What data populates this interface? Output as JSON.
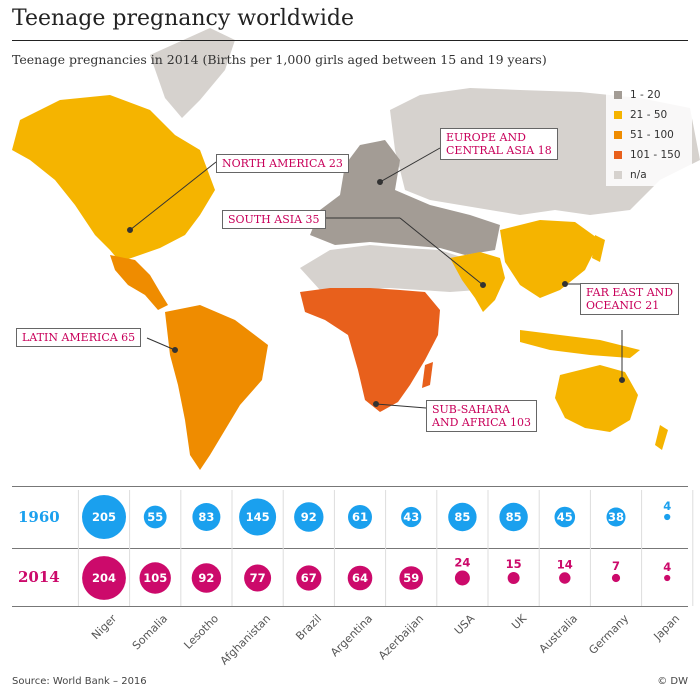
{
  "title": "Teenage pregnancy worldwide",
  "subtitle": "Teenage pregnancies in 2014 (Births per 1,000 girls aged between 15 and 19 years)",
  "colors": {
    "band_1_20": "#a39c95",
    "band_21_50": "#f5b400",
    "band_51_100": "#ef8c00",
    "band_101_150": "#e8601c",
    "band_na": "#d6d2ce",
    "blue": "#1aa0ee",
    "pink": "#cc0a6b"
  },
  "legend": [
    {
      "label": "1 - 20",
      "color": "#a39c95"
    },
    {
      "label": "21 - 50",
      "color": "#f5b400"
    },
    {
      "label": "51 - 100",
      "color": "#ef8c00"
    },
    {
      "label": "101 - 150",
      "color": "#e8601c"
    },
    {
      "label": "n/a",
      "color": "#d6d2ce"
    }
  ],
  "regions": {
    "north_america": "NORTH AMERICA 23",
    "europe_central_asia": "EUROPE AND\nCENTRAL ASIA 18",
    "south_asia": "SOUTH ASIA 35",
    "far_east": "FAR EAST AND\nOCEANIC 21",
    "latin_america": "LATIN AMERICA 65",
    "sub_sahara": "SUB-SAHARA\nAND AFRICA 103"
  },
  "chart_data": {
    "type": "bubble-table",
    "categories": [
      "Niger",
      "Somalia",
      "Lesotho",
      "Afghanistan",
      "Brazil",
      "Argentina",
      "Azerbaijan",
      "USA",
      "UK",
      "Australia",
      "Germany",
      "Japan"
    ],
    "series": [
      {
        "name": "1960",
        "values": [
          205,
          55,
          83,
          145,
          92,
          61,
          43,
          85,
          85,
          45,
          38,
          4
        ]
      },
      {
        "name": "2014",
        "values": [
          204,
          105,
          92,
          77,
          67,
          64,
          59,
          24,
          15,
          14,
          7,
          4
        ]
      }
    ]
  },
  "footer": {
    "source": "Source: World Bank – 2016",
    "brand": "© DW"
  }
}
